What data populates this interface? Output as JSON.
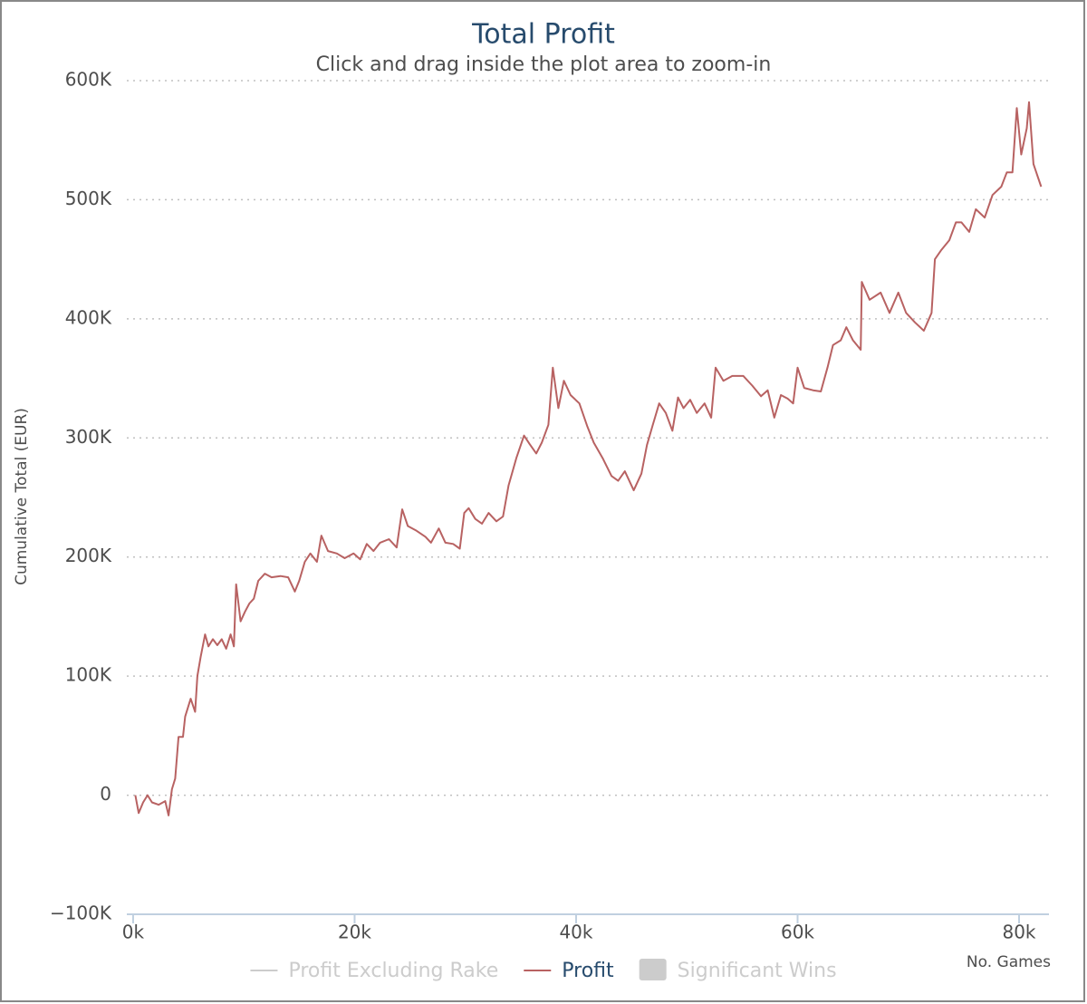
{
  "chart_data": {
    "type": "line",
    "title": "Total Profit",
    "subtitle": "Click and drag inside the plot area to zoom-in",
    "x_label": "No. Games",
    "y_label": "Cumulative Total (EUR)",
    "xlim": [
      -570,
      82700
    ],
    "ylim": [
      -100000,
      600000
    ],
    "xticks": [
      {
        "value": 0,
        "label": "0k"
      },
      {
        "value": 20000,
        "label": "20k"
      },
      {
        "value": 40000,
        "label": "40k"
      },
      {
        "value": 60000,
        "label": "60k"
      },
      {
        "value": 80000,
        "label": "80k"
      }
    ],
    "yticks": [
      {
        "value": -100000,
        "label": "−100K"
      },
      0,
      {
        "value": 100000,
        "label": "100K"
      },
      {
        "value": 200000,
        "label": "200K"
      },
      {
        "value": 300000,
        "label": "300K"
      },
      {
        "value": 400000,
        "label": "400K"
      },
      {
        "value": 500000,
        "label": "500K"
      },
      {
        "value": 600000,
        "label": "600K"
      }
    ],
    "grid": true,
    "legend": "bottom",
    "x": [
      200,
      500,
      900,
      1300,
      1700,
      2300,
      2900,
      3200,
      3500,
      3800,
      4100,
      4500,
      4700,
      5200,
      5600,
      5800,
      6100,
      6500,
      6800,
      7200,
      7600,
      8000,
      8400,
      8800,
      9100,
      9300,
      9700,
      10100,
      10500,
      10900,
      11300,
      11900,
      12500,
      13300,
      14000,
      14600,
      15000,
      15500,
      16000,
      16600,
      17000,
      17600,
      18400,
      19100,
      19900,
      20500,
      21100,
      21700,
      22300,
      23100,
      23800,
      24300,
      24800,
      25600,
      26400,
      26900,
      27600,
      28200,
      28900,
      29500,
      29900,
      30300,
      30900,
      31500,
      32100,
      32800,
      33400,
      33900,
      34600,
      35300,
      35800,
      36400,
      36900,
      37500,
      37900,
      38400,
      38900,
      39500,
      40300,
      41000,
      41600,
      42400,
      43200,
      43800,
      44400,
      45200,
      45900,
      46400,
      46900,
      47500,
      48100,
      48700,
      49200,
      49700,
      50300,
      50900,
      51600,
      52200,
      52600,
      53300,
      54100,
      55100,
      55900,
      56700,
      57300,
      57900,
      58500,
      59100,
      59600,
      60000,
      60600,
      61400,
      62100,
      62700,
      63200,
      63900,
      64400,
      65000,
      65700,
      65800,
      66500,
      67500,
      68300,
      69100,
      69800,
      70600,
      71400,
      72100,
      72400,
      73000,
      73700,
      74300,
      74800,
      75500,
      76100,
      76900,
      77600,
      78400,
      78900,
      79400,
      79800,
      80200,
      80700,
      80900,
      81300,
      81700,
      82000
    ],
    "series": [
      {
        "name": "Profit Excluding Rake",
        "type": "line",
        "color": "#cccccc",
        "visible": false
      },
      {
        "name": "Profit",
        "type": "line",
        "color": "#b86262",
        "visible": true,
        "values": [
          0,
          -15000,
          -6000,
          0,
          -6000,
          -8000,
          -5000,
          -17000,
          5000,
          14000,
          49000,
          49000,
          66000,
          81000,
          70000,
          100000,
          116000,
          135000,
          125000,
          131000,
          126000,
          131000,
          123000,
          135000,
          125000,
          177000,
          146000,
          154000,
          161000,
          165000,
          180000,
          186000,
          183000,
          184000,
          183000,
          171000,
          180000,
          196000,
          203000,
          196000,
          218000,
          205000,
          203000,
          199000,
          203000,
          198000,
          211000,
          205000,
          212000,
          215000,
          208000,
          240000,
          226000,
          222000,
          217000,
          212000,
          224000,
          212000,
          211000,
          207000,
          237000,
          241000,
          232000,
          228000,
          237000,
          230000,
          234000,
          260000,
          283000,
          302000,
          295000,
          287000,
          296000,
          311000,
          359000,
          325000,
          348000,
          336000,
          329000,
          310000,
          296000,
          283000,
          268000,
          264000,
          272000,
          256000,
          270000,
          294000,
          310000,
          329000,
          321000,
          306000,
          334000,
          325000,
          332000,
          321000,
          329000,
          317000,
          359000,
          348000,
          352000,
          352000,
          344000,
          335000,
          340000,
          317000,
          336000,
          333000,
          329000,
          359000,
          342000,
          340000,
          339000,
          359000,
          378000,
          382000,
          393000,
          382000,
          374000,
          431000,
          416000,
          422000,
          405000,
          422000,
          405000,
          397000,
          390000,
          405000,
          450000,
          458000,
          466000,
          481000,
          481000,
          473000,
          492000,
          485000,
          504000,
          511000,
          523000,
          523000,
          577000,
          538000,
          560000,
          582000,
          530000,
          519000,
          511000
        ]
      },
      {
        "name": "Significant Wins",
        "type": "area",
        "color": "#cccccc",
        "visible": false
      }
    ]
  }
}
